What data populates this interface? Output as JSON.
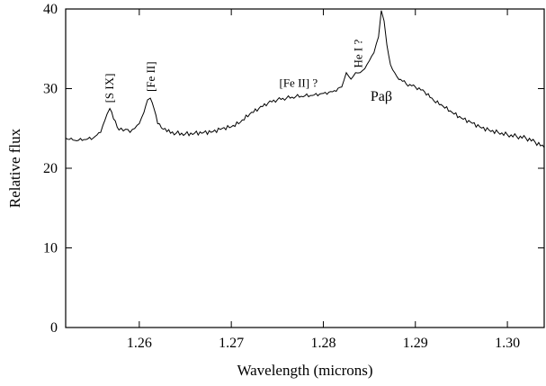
{
  "chart_data": {
    "type": "line",
    "title": "",
    "xlabel": "Wavelength (microns)",
    "ylabel": "Relative flux",
    "xlim": [
      1.252,
      1.304
    ],
    "ylim": [
      0,
      40
    ],
    "x_ticks": [
      1.26,
      1.27,
      1.28,
      1.29,
      1.3
    ],
    "x_tick_labels": [
      "1.26",
      "1.27",
      "1.28",
      "1.29",
      "1.30"
    ],
    "y_ticks": [
      0,
      10,
      20,
      30,
      40
    ],
    "y_tick_labels": [
      "0",
      "10",
      "20",
      "30",
      "40"
    ],
    "grid": false,
    "series": [
      {
        "x": [
          1.252,
          1.253,
          1.254,
          1.255,
          1.2558,
          1.2565,
          1.2568,
          1.2572,
          1.2578,
          1.2585,
          1.259,
          1.2595,
          1.26,
          1.2605,
          1.2609,
          1.2612,
          1.2616,
          1.262,
          1.2626,
          1.263,
          1.264,
          1.265,
          1.266,
          1.267,
          1.268,
          1.269,
          1.27,
          1.271,
          1.272,
          1.273,
          1.274,
          1.275,
          1.276,
          1.277,
          1.278,
          1.279,
          1.28,
          1.281,
          1.282,
          1.2825,
          1.283,
          1.2835,
          1.284,
          1.2845,
          1.285,
          1.2855,
          1.286,
          1.2863,
          1.2866,
          1.2869,
          1.2873,
          1.288,
          1.289,
          1.29,
          1.291,
          1.292,
          1.293,
          1.294,
          1.295,
          1.296,
          1.297,
          1.298,
          1.299,
          1.3,
          1.301,
          1.302,
          1.303,
          1.304
        ],
        "y": [
          23.8,
          23.5,
          23.6,
          23.8,
          24.5,
          26.8,
          27.5,
          26.2,
          24.8,
          24.9,
          24.5,
          25.0,
          25.6,
          27.0,
          28.6,
          28.8,
          27.5,
          25.6,
          24.9,
          24.6,
          24.4,
          24.3,
          24.4,
          24.5,
          24.6,
          25.0,
          25.2,
          25.8,
          26.8,
          27.5,
          28.2,
          28.6,
          28.8,
          29.0,
          29.1,
          29.2,
          29.4,
          29.6,
          30.2,
          32.0,
          31.2,
          32.0,
          32.0,
          32.5,
          33.5,
          34.5,
          36.5,
          39.8,
          38.5,
          35.5,
          33.0,
          31.5,
          30.6,
          30.2,
          29.6,
          28.5,
          27.8,
          27.0,
          26.3,
          25.8,
          25.2,
          24.8,
          24.5,
          24.2,
          24.0,
          23.8,
          23.3,
          22.6
        ]
      }
    ],
    "annotations": [
      {
        "text": "[S IX]",
        "x": 1.2568,
        "y": 28.2,
        "rotated": true
      },
      {
        "text": "[Fe II]",
        "x": 1.2613,
        "y": 29.6,
        "rotated": true
      },
      {
        "text": "[Fe II] ?",
        "x": 1.2773,
        "y": 30.2,
        "rotated": false
      },
      {
        "text": "He I ?",
        "x": 1.2838,
        "y": 32.6,
        "rotated": true
      },
      {
        "text": "Paβ",
        "x": 1.2863,
        "y": 28.5,
        "rotated": false,
        "large": true
      }
    ]
  }
}
